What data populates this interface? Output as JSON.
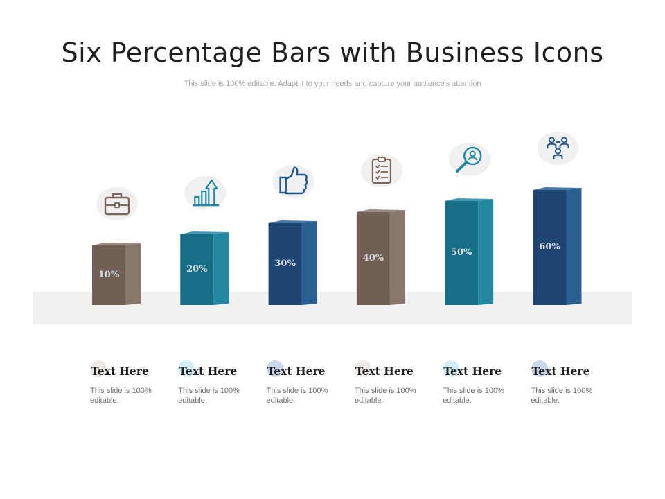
{
  "title": "Six Percentage Bars with Business Icons",
  "subtitle": "This slide is 100% editable. Adapt it to your needs and capture your audience's attention",
  "chart_data": {
    "type": "bar",
    "categories": [
      "",
      "",
      "",
      "",
      "",
      ""
    ],
    "values": [
      10,
      20,
      30,
      40,
      50,
      60
    ],
    "value_labels": [
      "10%",
      "20%",
      "30%",
      "40%",
      "50%",
      "60%"
    ],
    "colors": [
      "#715f55",
      "#176f86",
      "#1f4672",
      "#715f55",
      "#176f86",
      "#1f4672"
    ],
    "side_colors": [
      "#8a776c",
      "#2387a2",
      "#2a5f92",
      "#8a776c",
      "#2387a2",
      "#2a5f92"
    ],
    "icons": [
      "briefcase-icon",
      "growth-chart-icon",
      "thumbs-up-icon",
      "clipboard-checklist-icon",
      "search-user-icon",
      "team-network-icon"
    ],
    "icon_colors": [
      "#7a6559",
      "#1e86a3",
      "#22598e",
      "#7a6559",
      "#1e86a3",
      "#22598e"
    ],
    "grid": false
  },
  "cards": [
    {
      "title": "Text Here",
      "desc": "This slide is 100% editable.",
      "dot": "#ede9e6"
    },
    {
      "title": "Text Here",
      "desc": "This slide is 100% editable.",
      "dot": "#d3eef6"
    },
    {
      "title": "Text Here",
      "desc": "This slide is 100% editable.",
      "dot": "#cbd8ec"
    },
    {
      "title": "Text Here",
      "desc": "This slide is 100% editable.",
      "dot": "#ede9e6"
    },
    {
      "title": "Text Here",
      "desc": "This slide is 100% editable.",
      "dot": "#d3eef6"
    },
    {
      "title": "Text Here",
      "desc": "This slide is 100% editable.",
      "dot": "#cbd8ec"
    }
  ]
}
